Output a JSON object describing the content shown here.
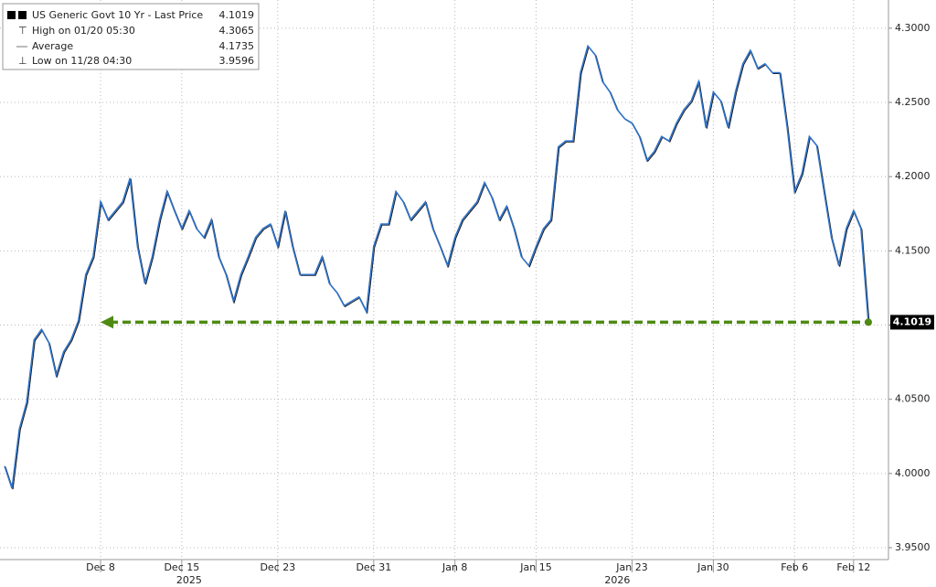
{
  "chart_data": {
    "type": "line",
    "categories": [
      null,
      null,
      null,
      null,
      null,
      null,
      null,
      null,
      null,
      null,
      null,
      null,
      null,
      "Dec 8",
      null,
      null,
      null,
      null,
      null,
      null,
      null,
      null,
      null,
      null,
      "Dec 15",
      null,
      null,
      null,
      null,
      null,
      null,
      null,
      null,
      null,
      null,
      null,
      null,
      "Dec 23",
      null,
      null,
      null,
      null,
      null,
      null,
      null,
      null,
      null,
      null,
      null,
      null,
      "Dec 31",
      null,
      null,
      null,
      null,
      null,
      null,
      null,
      null,
      null,
      null,
      "Jan 8",
      null,
      null,
      null,
      null,
      null,
      null,
      null,
      null,
      null,
      null,
      "Jan 15",
      null,
      null,
      null,
      null,
      null,
      null,
      null,
      null,
      null,
      null,
      null,
      null,
      "Jan 23",
      null,
      null,
      null,
      null,
      null,
      null,
      null,
      null,
      null,
      null,
      "Jan 30",
      null,
      null,
      null,
      null,
      null,
      null,
      null,
      null,
      null,
      null,
      "Feb 6",
      null,
      null,
      null,
      null,
      null,
      null,
      null,
      "Feb 12",
      null,
      null
    ],
    "year_labels": [
      null,
      null,
      null,
      null,
      null,
      null,
      null,
      null,
      null,
      null,
      null,
      null,
      null,
      null,
      null,
      null,
      null,
      null,
      null,
      null,
      null,
      null,
      null,
      null,
      null,
      "2025",
      null,
      null,
      null,
      null,
      null,
      null,
      null,
      null,
      null,
      null,
      null,
      null,
      null,
      null,
      null,
      null,
      null,
      null,
      null,
      null,
      null,
      null,
      null,
      null,
      null,
      null,
      null,
      null,
      null,
      null,
      null,
      null,
      null,
      null,
      null,
      null,
      null,
      null,
      null,
      null,
      null,
      null,
      null,
      null,
      null,
      null,
      null,
      null,
      null,
      null,
      null,
      null,
      null,
      null,
      null,
      null,
      null,
      "2026",
      null,
      null,
      null,
      null,
      null,
      null,
      null,
      null,
      null,
      null,
      null,
      null,
      null,
      null,
      null,
      null,
      null,
      null,
      null,
      null,
      null,
      null,
      null,
      null,
      null,
      null,
      null,
      null,
      null,
      null,
      null,
      null,
      null,
      null
    ],
    "series": [
      {
        "name": "US Generic Govt 10 Yr - Last Price",
        "color": "#2f73c9",
        "last_value": 4.1019,
        "values": [
          4.005,
          3.99,
          4.03,
          4.048,
          4.09,
          4.097,
          4.088,
          4.066,
          4.082,
          4.09,
          4.103,
          4.134,
          4.146,
          4.183,
          4.171,
          4.177,
          4.183,
          4.199,
          4.153,
          4.128,
          4.146,
          4.171,
          4.19,
          4.177,
          4.165,
          4.177,
          4.165,
          4.159,
          4.171,
          4.146,
          4.134,
          4.116,
          4.134,
          4.146,
          4.159,
          4.165,
          4.168,
          4.153,
          4.177,
          4.153,
          4.134,
          4.134,
          4.134,
          4.146,
          4.128,
          4.122,
          4.113,
          4.116,
          4.119,
          4.109,
          4.153,
          4.168,
          4.168,
          4.19,
          4.183,
          4.171,
          4.177,
          4.183,
          4.165,
          4.153,
          4.14,
          4.159,
          4.171,
          4.177,
          4.183,
          4.196,
          4.186,
          4.171,
          4.18,
          4.165,
          4.146,
          4.14,
          4.153,
          4.165,
          4.171,
          4.22,
          4.224,
          4.224,
          4.27,
          4.288,
          4.282,
          4.264,
          4.257,
          4.245,
          4.239,
          4.236,
          4.227,
          4.211,
          4.217,
          4.227,
          4.224,
          4.236,
          4.245,
          4.251,
          4.264,
          4.233,
          4.257,
          4.251,
          4.233,
          4.257,
          4.276,
          4.285,
          4.273,
          4.276,
          4.27,
          4.27,
          4.233,
          4.19,
          4.202,
          4.227,
          4.221,
          4.19,
          4.159,
          4.14,
          4.165,
          4.177,
          4.165,
          4.1019
        ]
      }
    ],
    "stats": [
      {
        "name": "High on 01/20 05:30",
        "value": 4.3065
      },
      {
        "name": "Average",
        "value": 4.1735
      },
      {
        "name": "Low on 11/28 04:30",
        "value": 3.9596
      }
    ],
    "last_line_color": "#4e8a12",
    "ylim": [
      3.942,
      4.319
    ],
    "yticks": [
      {
        "value": 3.95,
        "label": "3.9500"
      },
      {
        "value": 4.0,
        "label": "4.0000"
      },
      {
        "value": 4.05,
        "label": "4.0500"
      },
      {
        "value": 4.1,
        "label": "4.1000"
      },
      {
        "value": 4.15,
        "label": "4.1500"
      },
      {
        "value": 4.2,
        "label": "4.2000"
      },
      {
        "value": 4.25,
        "label": "4.2500"
      },
      {
        "value": 4.3,
        "label": "4.3000"
      }
    ],
    "grid": true
  }
}
